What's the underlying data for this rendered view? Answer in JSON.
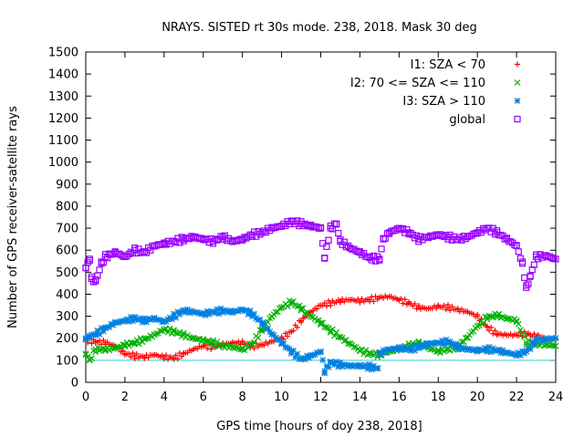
{
  "chart_data": {
    "type": "scatter",
    "title": "NRAYS. SISTED rt 30s mode. 238, 2018. Mask 30 deg",
    "xlabel": "GPS time [hours of doy 238, 2018]",
    "ylabel": "Number of GPS receiver-satellite rays",
    "xlim": [
      0,
      24
    ],
    "ylim": [
      0,
      1500
    ],
    "xticks": [
      0,
      2,
      4,
      6,
      8,
      10,
      12,
      14,
      16,
      18,
      20,
      22,
      24
    ],
    "yticks": [
      0,
      100,
      200,
      300,
      400,
      500,
      600,
      700,
      800,
      900,
      1000,
      1100,
      1200,
      1300,
      1400,
      1500
    ],
    "reference_line": {
      "y": 100,
      "color": "#33cccc"
    },
    "legend_position": "top-right",
    "series": [
      {
        "name": "I1: SZA < 70",
        "color": "#ff0000",
        "marker": "plus",
        "points": [
          [
            0,
            190
          ],
          [
            0.5,
            185
          ],
          [
            1,
            180
          ],
          [
            1.5,
            165
          ],
          [
            2,
            130
          ],
          [
            2.5,
            120
          ],
          [
            3,
            115
          ],
          [
            3.5,
            125
          ],
          [
            4,
            115
          ],
          [
            4.5,
            110
          ],
          [
            5,
            130
          ],
          [
            5.5,
            150
          ],
          [
            6,
            165
          ],
          [
            6.5,
            160
          ],
          [
            7,
            170
          ],
          [
            7.5,
            180
          ],
          [
            8,
            180
          ],
          [
            8.5,
            165
          ],
          [
            9,
            170
          ],
          [
            9.5,
            185
          ],
          [
            10,
            200
          ],
          [
            10.5,
            230
          ],
          [
            11,
            280
          ],
          [
            11.5,
            320
          ],
          [
            12,
            350
          ],
          [
            12.5,
            360
          ],
          [
            13,
            370
          ],
          [
            13.5,
            375
          ],
          [
            14,
            370
          ],
          [
            14.5,
            375
          ],
          [
            15,
            385
          ],
          [
            15.5,
            390
          ],
          [
            16,
            375
          ],
          [
            16.5,
            360
          ],
          [
            17,
            340
          ],
          [
            17.5,
            335
          ],
          [
            18,
            345
          ],
          [
            18.5,
            340
          ],
          [
            19,
            330
          ],
          [
            19.5,
            320
          ],
          [
            20,
            300
          ],
          [
            20.5,
            250
          ],
          [
            21,
            220
          ],
          [
            21.5,
            215
          ],
          [
            22,
            215
          ],
          [
            22.5,
            220
          ],
          [
            23,
            210
          ],
          [
            23.5,
            200
          ],
          [
            24,
            195
          ]
        ]
      },
      {
        "name": "I2: 70 <= SZA <= 110",
        "color": "#00b000",
        "marker": "cross",
        "points": [
          [
            0,
            130
          ],
          [
            0.2,
            100
          ],
          [
            0.5,
            150
          ],
          [
            1,
            150
          ],
          [
            1.5,
            155
          ],
          [
            2,
            170
          ],
          [
            2.5,
            180
          ],
          [
            3,
            195
          ],
          [
            3.5,
            215
          ],
          [
            4,
            240
          ],
          [
            4.5,
            230
          ],
          [
            5,
            215
          ],
          [
            5.5,
            200
          ],
          [
            6,
            190
          ],
          [
            6.5,
            180
          ],
          [
            7,
            165
          ],
          [
            7.5,
            160
          ],
          [
            8,
            150
          ],
          [
            8.5,
            175
          ],
          [
            9,
            240
          ],
          [
            9.5,
            300
          ],
          [
            10,
            340
          ],
          [
            10.5,
            365
          ],
          [
            11,
            335
          ],
          [
            11.5,
            300
          ],
          [
            12,
            270
          ],
          [
            12.5,
            235
          ],
          [
            13,
            205
          ],
          [
            13.5,
            175
          ],
          [
            14,
            145
          ],
          [
            14.5,
            130
          ],
          [
            15,
            125
          ],
          [
            15.5,
            140
          ],
          [
            16,
            150
          ],
          [
            16.5,
            165
          ],
          [
            17,
            180
          ],
          [
            17.5,
            155
          ],
          [
            18,
            140
          ],
          [
            18.5,
            150
          ],
          [
            19,
            165
          ],
          [
            19.5,
            205
          ],
          [
            20,
            255
          ],
          [
            20.5,
            295
          ],
          [
            21,
            305
          ],
          [
            21.5,
            290
          ],
          [
            22,
            280
          ],
          [
            22.5,
            180
          ],
          [
            23,
            175
          ],
          [
            23.5,
            170
          ],
          [
            24,
            165
          ]
        ]
      },
      {
        "name": "I3: SZA > 110",
        "color": "#0080e0",
        "marker": "star",
        "points": [
          [
            0,
            200
          ],
          [
            0.5,
            220
          ],
          [
            1,
            245
          ],
          [
            1.5,
            270
          ],
          [
            2,
            280
          ],
          [
            2.5,
            290
          ],
          [
            3,
            280
          ],
          [
            3.5,
            290
          ],
          [
            4,
            275
          ],
          [
            4.5,
            300
          ],
          [
            5,
            325
          ],
          [
            5.5,
            320
          ],
          [
            6,
            310
          ],
          [
            6.5,
            320
          ],
          [
            7,
            325
          ],
          [
            7.5,
            320
          ],
          [
            8,
            330
          ],
          [
            8.5,
            310
          ],
          [
            9,
            270
          ],
          [
            9.5,
            220
          ],
          [
            10,
            180
          ],
          [
            10.5,
            140
          ],
          [
            11,
            105
          ],
          [
            11.5,
            120
          ],
          [
            12,
            140
          ],
          [
            12.2,
            50
          ],
          [
            12.5,
            90
          ],
          [
            13,
            80
          ],
          [
            13.5,
            75
          ],
          [
            14,
            75
          ],
          [
            14.5,
            70
          ],
          [
            14.9,
            65
          ],
          [
            15,
            130
          ],
          [
            15.5,
            150
          ],
          [
            16,
            155
          ],
          [
            16.5,
            150
          ],
          [
            17,
            160
          ],
          [
            17.5,
            175
          ],
          [
            18,
            180
          ],
          [
            18.5,
            185
          ],
          [
            19,
            160
          ],
          [
            19.5,
            150
          ],
          [
            20,
            145
          ],
          [
            20.5,
            150
          ],
          [
            21,
            145
          ],
          [
            21.5,
            135
          ],
          [
            22,
            125
          ],
          [
            22.5,
            140
          ],
          [
            23,
            190
          ],
          [
            23.5,
            195
          ],
          [
            24,
            200
          ]
        ]
      },
      {
        "name": "global",
        "color": "#9900ff",
        "marker": "square",
        "points": [
          [
            0,
            520
          ],
          [
            0.2,
            560
          ],
          [
            0.3,
            470
          ],
          [
            0.5,
            460
          ],
          [
            0.8,
            540
          ],
          [
            1,
            570
          ],
          [
            1.5,
            590
          ],
          [
            2,
            570
          ],
          [
            2.5,
            600
          ],
          [
            3,
            590
          ],
          [
            3.5,
            620
          ],
          [
            4,
            630
          ],
          [
            4.5,
            640
          ],
          [
            5,
            650
          ],
          [
            5.5,
            660
          ],
          [
            6,
            650
          ],
          [
            6.5,
            640
          ],
          [
            7,
            660
          ],
          [
            7.5,
            640
          ],
          [
            8,
            650
          ],
          [
            8.5,
            670
          ],
          [
            9,
            680
          ],
          [
            9.5,
            700
          ],
          [
            10,
            710
          ],
          [
            10.5,
            730
          ],
          [
            11,
            720
          ],
          [
            11.5,
            710
          ],
          [
            12,
            700
          ],
          [
            12.2,
            565
          ],
          [
            12.5,
            700
          ],
          [
            12.8,
            720
          ],
          [
            13,
            640
          ],
          [
            13.5,
            610
          ],
          [
            14,
            590
          ],
          [
            14.5,
            565
          ],
          [
            15,
            560
          ],
          [
            15.2,
            650
          ],
          [
            15.5,
            680
          ],
          [
            16,
            700
          ],
          [
            16.5,
            680
          ],
          [
            17,
            650
          ],
          [
            17.5,
            660
          ],
          [
            18,
            670
          ],
          [
            18.5,
            660
          ],
          [
            19,
            650
          ],
          [
            19.5,
            660
          ],
          [
            20,
            680
          ],
          [
            20.5,
            700
          ],
          [
            21,
            680
          ],
          [
            21.5,
            650
          ],
          [
            22,
            620
          ],
          [
            22.3,
            540
          ],
          [
            22.5,
            430
          ],
          [
            22.7,
            480
          ],
          [
            23,
            570
          ],
          [
            23.5,
            575
          ],
          [
            24,
            560
          ]
        ]
      }
    ]
  }
}
